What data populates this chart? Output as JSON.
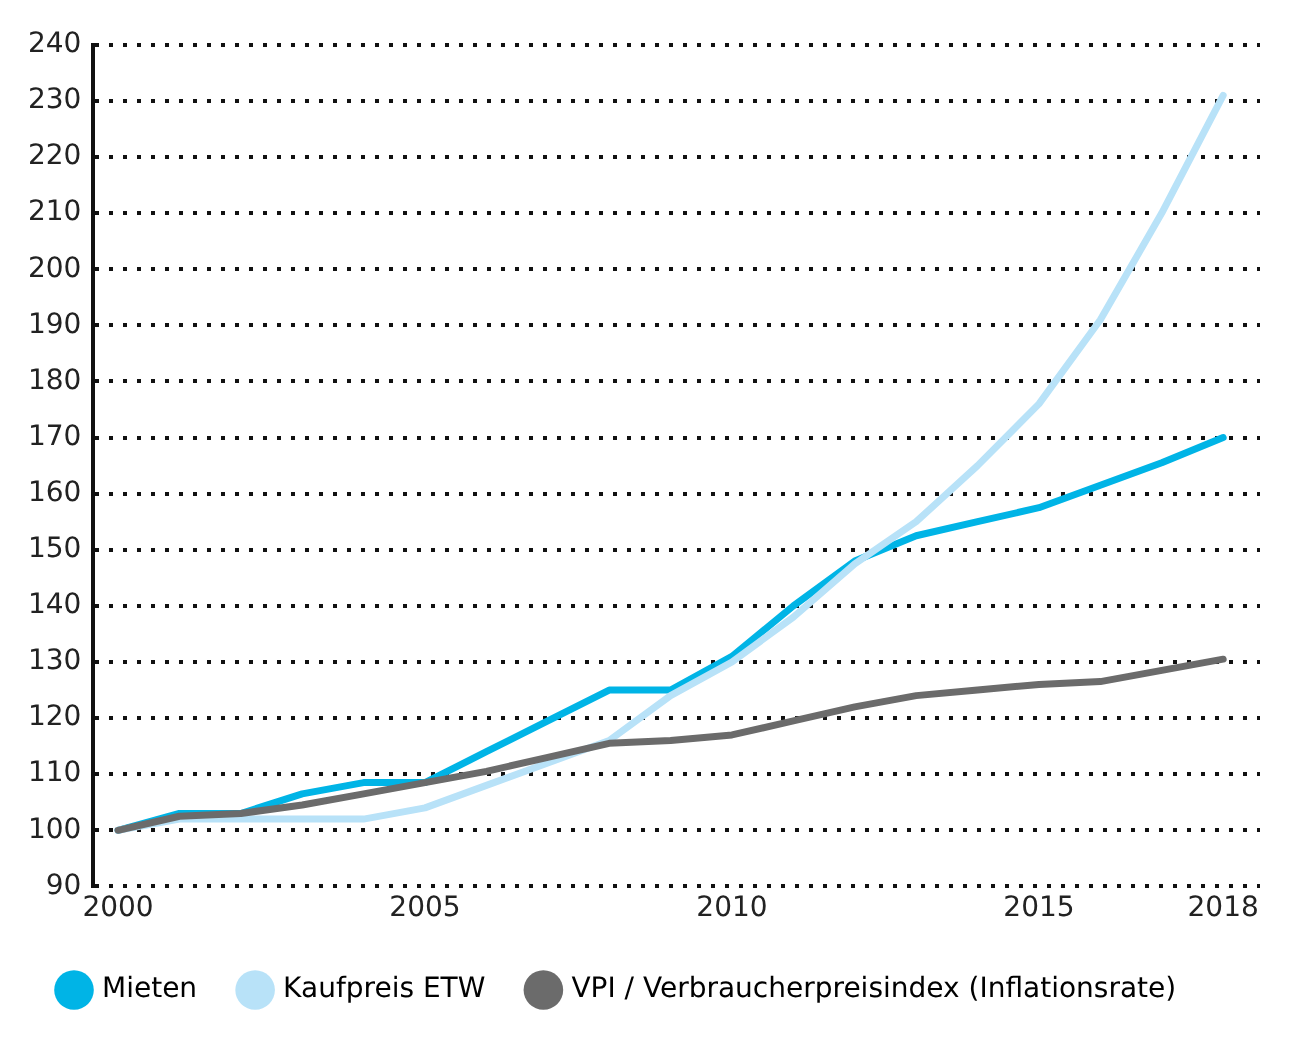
{
  "chart_data": {
    "type": "line",
    "x": [
      2000,
      2001,
      2002,
      2003,
      2004,
      2005,
      2006,
      2007,
      2008,
      2009,
      2010,
      2011,
      2012,
      2013,
      2014,
      2015,
      2016,
      2017,
      2018
    ],
    "series": [
      {
        "name": "Mieten",
        "color": "#00b4e6",
        "values": [
          100,
          103,
          103,
          106.5,
          108.5,
          108.5,
          114,
          119.5,
          125,
          125,
          131,
          140,
          148,
          152.5,
          155,
          157.5,
          161.5,
          165.5,
          170
        ]
      },
      {
        "name": "Kaufpreis ETW",
        "color": "#b8e2f8",
        "values": [
          100,
          102,
          102,
          102,
          102,
          104,
          108,
          112,
          116,
          124,
          130,
          138,
          147.5,
          155,
          165,
          176,
          191,
          210,
          231
        ]
      },
      {
        "name": "VPI / Verbraucherpreisindex (Inflationsrate)",
        "color": "#6b6b6b",
        "values": [
          100,
          102.5,
          103,
          104.5,
          106.5,
          108.5,
          110.5,
          113,
          115.5,
          116,
          117,
          119.5,
          122,
          124,
          125,
          126,
          126.5,
          128.5,
          130.5
        ]
      }
    ],
    "xlim": [
      1999.6,
      2018.6
    ],
    "xticks": [
      2000,
      2005,
      2010,
      2015,
      2018
    ],
    "ylim": [
      90,
      240
    ],
    "yticks": [
      90,
      100,
      110,
      120,
      130,
      140,
      150,
      160,
      170,
      180,
      190,
      200,
      210,
      220,
      230,
      240
    ],
    "grid": "y",
    "legend": "bottom",
    "marker": "none",
    "line_style": "solid"
  }
}
